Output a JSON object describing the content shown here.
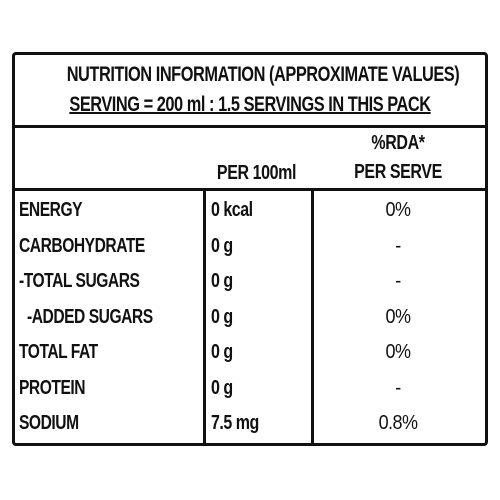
{
  "header": {
    "line1": "NUTRITION INFORMATION (APPROXIMATE VALUES)",
    "line2": "SERVING = 200 ml : 1.5 SERVINGS IN THIS PACK"
  },
  "columns": {
    "per100": "PER 100ml",
    "rda_line1": "%RDA*",
    "rda_line2": "PER SERVE"
  },
  "rows": [
    {
      "name": "ENERGY",
      "per100": "0 kcal",
      "rda": "0%"
    },
    {
      "name": "CARBOHYDRATE",
      "per100": "0 g",
      "rda": "-"
    },
    {
      "name": "-TOTAL SUGARS",
      "per100": "0 g",
      "rda": "-"
    },
    {
      "name": "-ADDED SUGARS",
      "per100": "0 g",
      "rda": "0%"
    },
    {
      "name": "TOTAL FAT",
      "per100": "0 g",
      "rda": "0%"
    },
    {
      "name": "PROTEIN",
      "per100": "0 g",
      "rda": "-"
    },
    {
      "name": "SODIUM",
      "per100": "7.5 mg",
      "rda": "0.8%"
    }
  ]
}
